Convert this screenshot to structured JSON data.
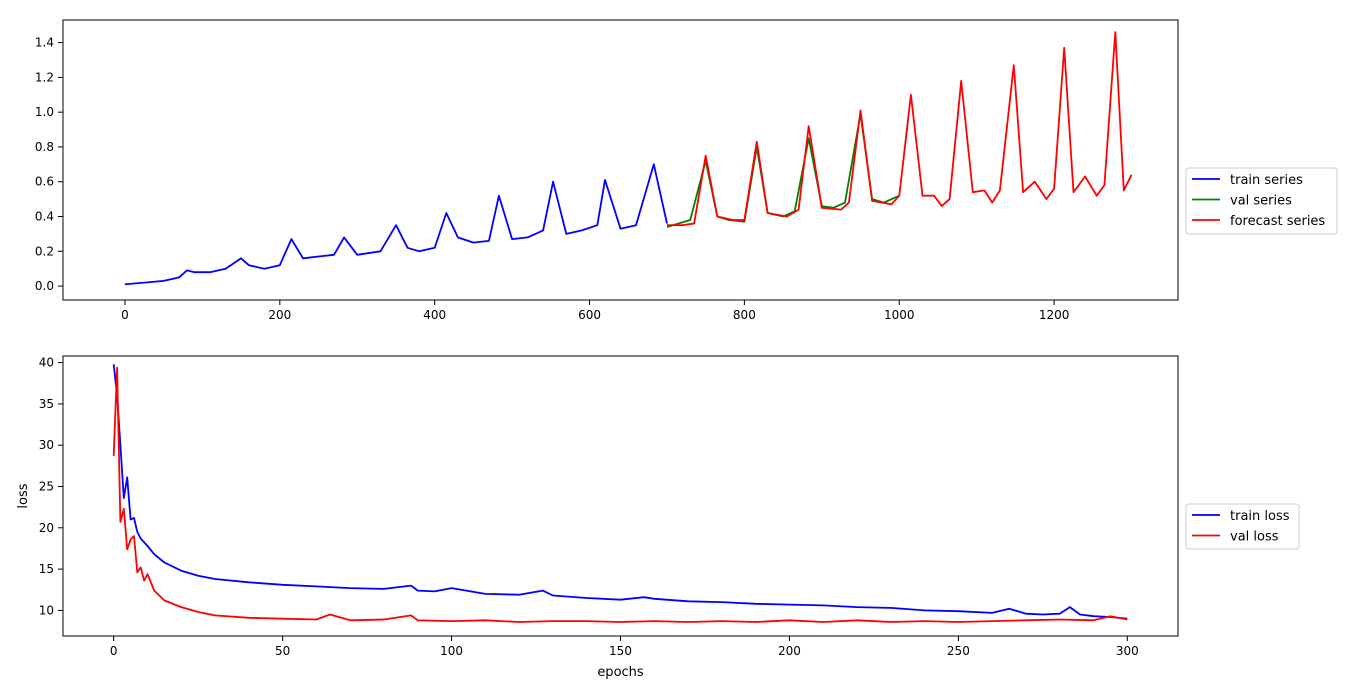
{
  "chart_data": [
    {
      "type": "line",
      "title": "",
      "xlabel": "",
      "ylabel": "",
      "xlim": [
        -80,
        1360
      ],
      "ylim": [
        -0.08,
        1.53
      ],
      "grid": false,
      "legend_placement": "right-outside",
      "xticks": [
        0,
        200,
        400,
        600,
        800,
        1000,
        1200
      ],
      "xtick_labels": [
        "0",
        "200",
        "400",
        "600",
        "800",
        "1000",
        "1200"
      ],
      "yticks": [
        0.0,
        0.2,
        0.4,
        0.6,
        0.8,
        1.0,
        1.2,
        1.4
      ],
      "ytick_labels": [
        "0.0",
        "0.2",
        "0.4",
        "0.6",
        "0.8",
        "1.0",
        "1.2",
        "1.4"
      ],
      "series": [
        {
          "name": "train series",
          "color": "#0000ff",
          "x": [
            0,
            25,
            50,
            60,
            70,
            80,
            90,
            110,
            130,
            150,
            160,
            180,
            200,
            215,
            230,
            250,
            270,
            283,
            300,
            330,
            350,
            365,
            380,
            400,
            415,
            430,
            450,
            470,
            483,
            500,
            520,
            540,
            553,
            570,
            590,
            610,
            620,
            640,
            660,
            683,
            700
          ],
          "y": [
            0.01,
            0.02,
            0.03,
            0.04,
            0.05,
            0.09,
            0.08,
            0.08,
            0.1,
            0.16,
            0.12,
            0.1,
            0.12,
            0.27,
            0.16,
            0.17,
            0.18,
            0.28,
            0.18,
            0.2,
            0.35,
            0.22,
            0.2,
            0.22,
            0.42,
            0.28,
            0.25,
            0.26,
            0.52,
            0.27,
            0.28,
            0.32,
            0.6,
            0.3,
            0.32,
            0.35,
            0.61,
            0.33,
            0.35,
            0.7,
            0.36
          ]
        },
        {
          "name": "val series",
          "color": "#008000",
          "x": [
            700,
            715,
            730,
            750,
            765,
            780,
            800,
            816,
            830,
            850,
            865,
            883,
            900,
            915,
            930,
            950,
            965,
            980,
            1000
          ],
          "y": [
            0.34,
            0.36,
            0.38,
            0.72,
            0.4,
            0.38,
            0.37,
            0.8,
            0.42,
            0.4,
            0.43,
            0.85,
            0.46,
            0.45,
            0.48,
            0.99,
            0.5,
            0.48,
            0.52
          ]
        },
        {
          "name": "forecast series",
          "color": "#ff0000",
          "x": [
            700,
            720,
            735,
            750,
            765,
            785,
            800,
            816,
            830,
            855,
            870,
            883,
            900,
            925,
            935,
            950,
            965,
            990,
            1000,
            1015,
            1030,
            1045,
            1055,
            1065,
            1080,
            1095,
            1110,
            1120,
            1130,
            1148,
            1160,
            1175,
            1190,
            1200,
            1213,
            1225,
            1240,
            1255,
            1265,
            1279,
            1290,
            1300
          ],
          "y": [
            0.35,
            0.35,
            0.36,
            0.75,
            0.4,
            0.38,
            0.38,
            0.83,
            0.42,
            0.4,
            0.44,
            0.92,
            0.45,
            0.44,
            0.48,
            1.01,
            0.49,
            0.47,
            0.52,
            1.1,
            0.52,
            0.52,
            0.46,
            0.5,
            1.18,
            0.54,
            0.55,
            0.48,
            0.55,
            1.27,
            0.54,
            0.6,
            0.5,
            0.56,
            1.37,
            0.54,
            0.63,
            0.52,
            0.58,
            1.46,
            0.55,
            0.64
          ]
        }
      ]
    },
    {
      "type": "line",
      "title": "",
      "xlabel": "epochs",
      "ylabel": "loss",
      "xlim": [
        -15,
        315
      ],
      "ylim": [
        6.9,
        40.8
      ],
      "grid": false,
      "legend_placement": "right-outside",
      "xticks": [
        0,
        50,
        100,
        150,
        200,
        250,
        300
      ],
      "xtick_labels": [
        "0",
        "50",
        "100",
        "150",
        "200",
        "250",
        "300"
      ],
      "yticks": [
        10,
        15,
        20,
        25,
        30,
        35,
        40
      ],
      "ytick_labels": [
        "10",
        "15",
        "20",
        "25",
        "30",
        "35",
        "40"
      ],
      "series": [
        {
          "name": "train loss",
          "color": "#0000ff",
          "x": [
            0,
            1,
            2,
            3,
            4,
            5,
            6,
            7,
            8,
            10,
            12,
            15,
            20,
            25,
            30,
            40,
            50,
            60,
            70,
            80,
            88,
            90,
            95,
            100,
            110,
            120,
            127,
            130,
            140,
            150,
            157,
            160,
            170,
            180,
            190,
            200,
            210,
            220,
            230,
            240,
            250,
            260,
            265,
            270,
            275,
            280,
            283,
            286,
            290,
            295,
            300
          ],
          "y": [
            39.8,
            36.0,
            30.0,
            23.6,
            26.1,
            21.0,
            21.2,
            19.5,
            18.7,
            17.8,
            16.8,
            15.8,
            14.8,
            14.2,
            13.8,
            13.4,
            13.1,
            12.9,
            12.7,
            12.6,
            13.0,
            12.4,
            12.3,
            12.7,
            12.0,
            11.9,
            12.4,
            11.8,
            11.5,
            11.3,
            11.6,
            11.4,
            11.1,
            11.0,
            10.8,
            10.7,
            10.6,
            10.4,
            10.3,
            10.0,
            9.9,
            9.7,
            10.2,
            9.6,
            9.5,
            9.6,
            10.4,
            9.5,
            9.3,
            9.2,
            9.0
          ]
        },
        {
          "name": "val loss",
          "color": "#ff0000",
          "x": [
            0,
            1,
            2,
            3,
            4,
            5,
            6,
            7,
            8,
            9,
            10,
            12,
            15,
            20,
            25,
            30,
            40,
            50,
            60,
            64,
            70,
            80,
            88,
            90,
            100,
            110,
            120,
            130,
            140,
            150,
            160,
            170,
            180,
            190,
            200,
            210,
            220,
            230,
            240,
            250,
            260,
            270,
            280,
            290,
            295,
            300
          ],
          "y": [
            28.7,
            39.4,
            20.7,
            22.3,
            17.4,
            18.6,
            19.0,
            14.6,
            15.2,
            13.6,
            14.4,
            12.4,
            11.2,
            10.4,
            9.8,
            9.4,
            9.1,
            9.0,
            8.9,
            9.5,
            8.8,
            8.9,
            9.4,
            8.8,
            8.7,
            8.8,
            8.6,
            8.7,
            8.7,
            8.6,
            8.7,
            8.6,
            8.7,
            8.6,
            8.8,
            8.6,
            8.8,
            8.6,
            8.7,
            8.6,
            8.7,
            8.8,
            8.9,
            8.8,
            9.3,
            8.9
          ]
        }
      ]
    }
  ]
}
